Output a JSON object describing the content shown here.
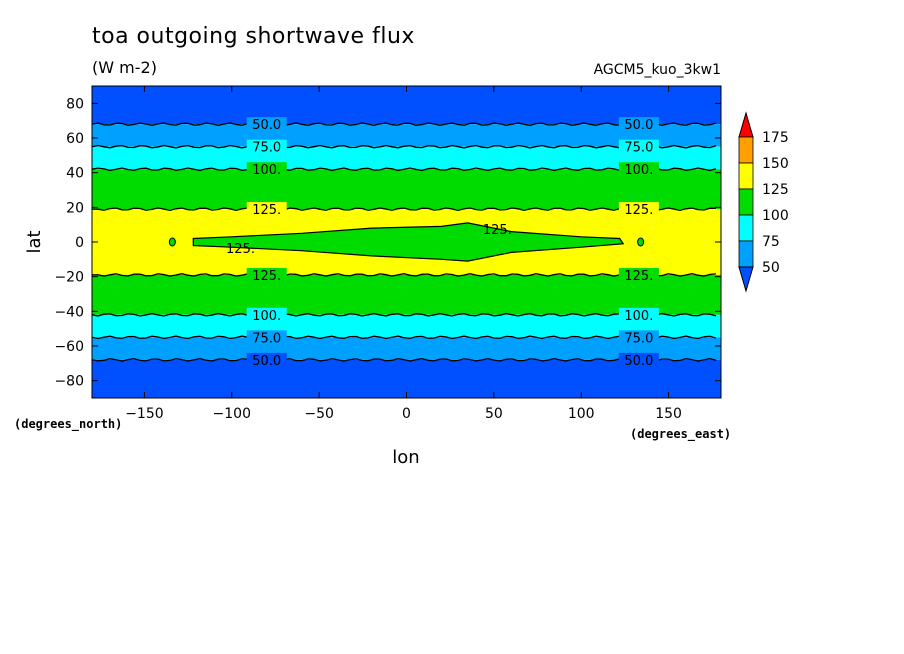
{
  "header": {
    "title": "toa outgoing shortwave flux",
    "units": "(W m-2)",
    "model": "AGCM5_kuo_3kw1"
  },
  "colors": {
    "band_50_75": "#00a0ff",
    "band_75_100": "#00ffff",
    "band_100_125": "#00dc00",
    "band_125_150": "#ffff00",
    "band_below_50": "#0050ff",
    "band_150_175": "#ffa000",
    "band_above_175": "#ff0000",
    "contour": "#000000"
  },
  "chart_data": {
    "type": "contour",
    "xlabel": "lon",
    "ylabel": "lat",
    "x_unit_label": "(degrees_east)",
    "y_unit_label": "(degrees_north)",
    "xlim": [
      -180,
      180
    ],
    "ylim": [
      -90,
      90
    ],
    "x_ticks": [
      -150,
      -100,
      -50,
      0,
      50,
      100,
      150
    ],
    "y_ticks": [
      80,
      60,
      40,
      20,
      0,
      -20,
      -40,
      -60,
      -80
    ],
    "colorbar": {
      "levels": [
        50,
        75,
        100,
        125,
        150,
        175
      ],
      "colors": [
        "#0050ff",
        "#00a0ff",
        "#00ffff",
        "#00dc00",
        "#ffff00",
        "#ffa000",
        "#ff0000"
      ]
    },
    "zonal_bands": [
      {
        "lat_min": 68,
        "lat_max": 90,
        "range": "<50"
      },
      {
        "lat_min": 55,
        "lat_max": 68,
        "range": "50-75"
      },
      {
        "lat_min": 42,
        "lat_max": 55,
        "range": "75-100"
      },
      {
        "lat_min": 19,
        "lat_max": 42,
        "range": "100-125"
      },
      {
        "lat_min": -19,
        "lat_max": 19,
        "range": "125-150"
      },
      {
        "lat_min": -42,
        "lat_max": -19,
        "range": "100-125"
      },
      {
        "lat_min": -55,
        "lat_max": -42,
        "range": "75-100"
      },
      {
        "lat_min": -68,
        "lat_max": -55,
        "range": "50-75"
      },
      {
        "lat_min": -90,
        "lat_max": -68,
        "range": "<50"
      }
    ],
    "contour_lines": [
      {
        "lat": 68,
        "label": "50.0"
      },
      {
        "lat": 55,
        "label": "75.0"
      },
      {
        "lat": 42,
        "label": "100."
      },
      {
        "lat": 19,
        "label": "125."
      },
      {
        "lat": -19,
        "label": "125."
      },
      {
        "lat": -42,
        "label": "100."
      },
      {
        "lat": -55,
        "label": "75.0"
      },
      {
        "lat": -68,
        "label": "50.0"
      }
    ],
    "equatorial_feature": {
      "range": "100-125",
      "label": "125.",
      "outline": [
        [
          -122,
          2
        ],
        [
          -100,
          3
        ],
        [
          -60,
          5
        ],
        [
          -20,
          8
        ],
        [
          20,
          9
        ],
        [
          35,
          11
        ],
        [
          60,
          6
        ],
        [
          100,
          3
        ],
        [
          122,
          2
        ],
        [
          124,
          -1
        ],
        [
          100,
          -3
        ],
        [
          60,
          -6
        ],
        [
          35,
          -11
        ],
        [
          20,
          -10
        ],
        [
          -20,
          -8
        ],
        [
          -60,
          -5
        ],
        [
          -100,
          -3
        ],
        [
          -122,
          -2
        ]
      ],
      "islands": [
        [
          -134,
          0
        ],
        [
          134,
          0
        ]
      ]
    }
  }
}
